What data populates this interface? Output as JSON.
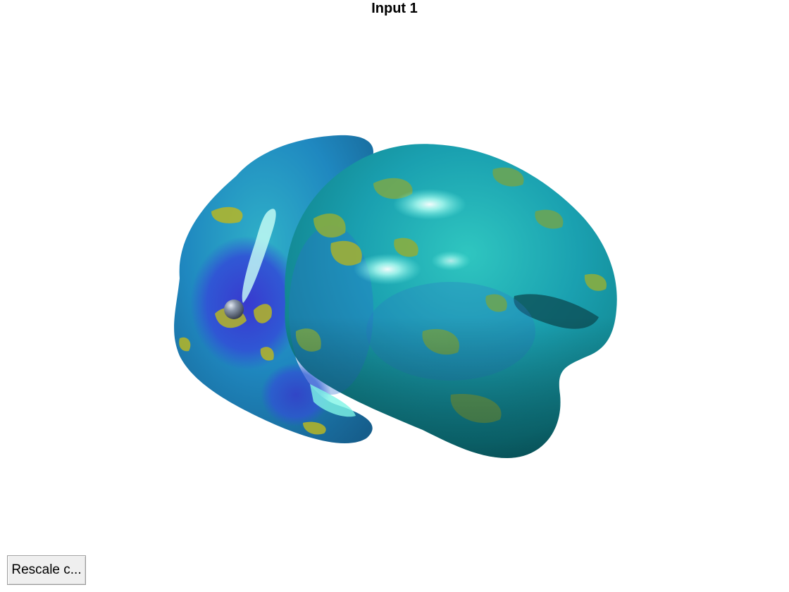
{
  "figure": {
    "title": "Input 1"
  },
  "controls": {
    "rescale_button_label": "Rescale c..."
  },
  "rendering": {
    "subject": "3D brain surface render with overlay",
    "colormap": [
      "#3b1fbf",
      "#3a5fd8",
      "#1f8fc9",
      "#18a6a9",
      "#5bb05a",
      "#b6b627"
    ],
    "marker": "sphere-marker"
  }
}
